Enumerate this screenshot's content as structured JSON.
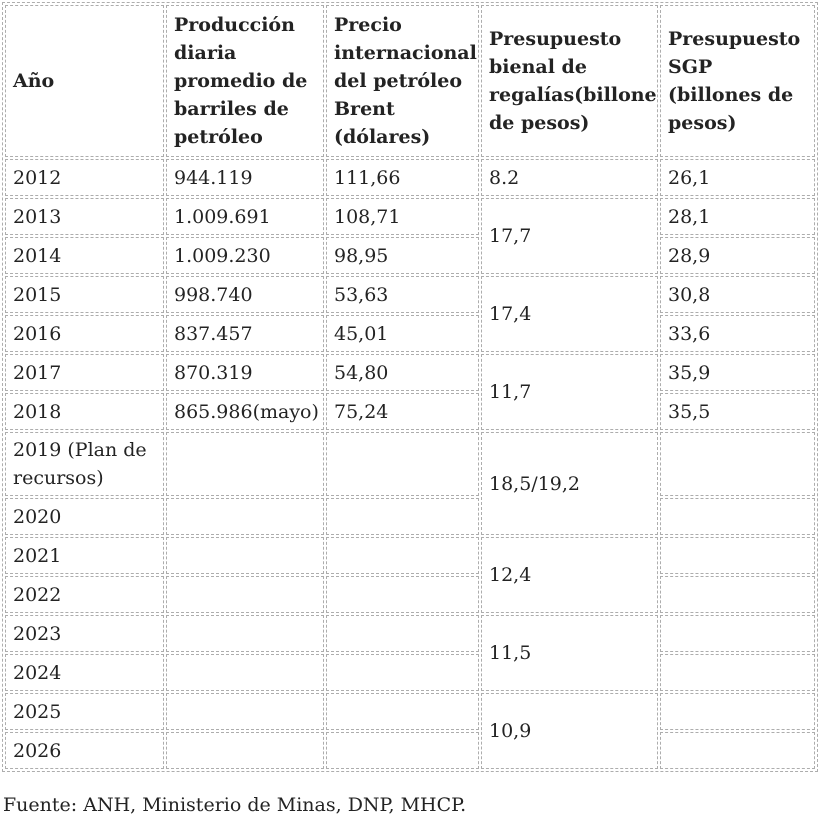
{
  "colors": {
    "text": "#232323",
    "border": "#adadad",
    "background": "#ffffff"
  },
  "table": {
    "columns": [
      {
        "key": "year",
        "label": "Año"
      },
      {
        "key": "production",
        "label": "Producción diaria promedio de barriles de petróleo"
      },
      {
        "key": "price",
        "label": "Precio internacional del petróleo Brent (dólares)"
      },
      {
        "key": "royalties",
        "label": "Presupuesto bienal de regalías(billones de pesos)"
      },
      {
        "key": "sgp",
        "label": "Presupuesto SGP (billones de pesos)"
      }
    ],
    "rows": [
      {
        "year": "2012",
        "production": "944.119",
        "price": "111,66",
        "royalties": "8.2",
        "sgp": "26,1"
      },
      {
        "year": "2013",
        "production": "1.009.691",
        "price": "108,71",
        "royalties": "17,7",
        "sgp": "28,1"
      },
      {
        "year": "2014",
        "production": "1.009.230",
        "price": "98,95",
        "sgp": "28,9"
      },
      {
        "year": "2015",
        "production": "998.740",
        "price": "53,63",
        "royalties": "17,4",
        "sgp": "30,8"
      },
      {
        "year": "2016",
        "production": "837.457",
        "price": "45,01",
        "sgp": "33,6"
      },
      {
        "year": "2017",
        "production": "870.319",
        "price": "54,80",
        "royalties": "11,7",
        "sgp": "35,9"
      },
      {
        "year": "2018",
        "production": "865.986(mayo)",
        "price": "75,24",
        "sgp": "35,5"
      },
      {
        "year": "2019 (Plan de recursos)",
        "production": "",
        "price": "",
        "royalties": "18,5/19,2",
        "sgp": ""
      },
      {
        "year": "2020",
        "production": "",
        "price": "",
        "sgp": ""
      },
      {
        "year": "2021",
        "production": "",
        "price": "",
        "royalties": "12,4",
        "sgp": ""
      },
      {
        "year": "2022",
        "production": "",
        "price": "",
        "sgp": ""
      },
      {
        "year": "2023",
        "production": "",
        "price": "",
        "royalties": "11,5",
        "sgp": ""
      },
      {
        "year": "2024",
        "production": "",
        "price": "",
        "sgp": ""
      },
      {
        "year": "2025",
        "production": "",
        "price": "",
        "royalties": "10,9",
        "sgp": ""
      },
      {
        "year": "2026",
        "production": "",
        "price": "",
        "sgp": ""
      }
    ]
  },
  "footer": {
    "source": "Fuente: ANH, Ministerio de Minas, DNP, MHCP."
  }
}
